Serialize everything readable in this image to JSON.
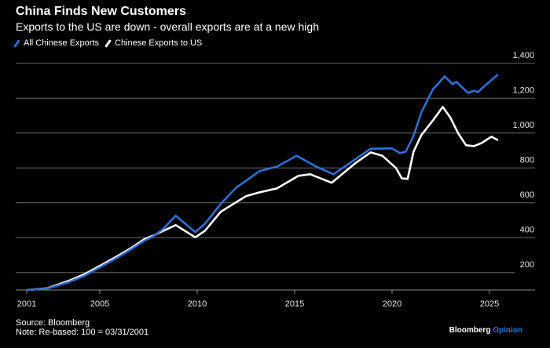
{
  "chart_data": {
    "type": "line",
    "title": "China Finds New Customers",
    "subtitle": "Exports to the US are down - overall exports are at a new high",
    "xlabel": "",
    "ylabel": "",
    "xlim": [
      2001,
      2026.5
    ],
    "ylim": [
      100,
      1400
    ],
    "x_ticks": [
      {
        "label": "2001",
        "value": 2001.25
      },
      {
        "label": "2005",
        "value": 2005
      },
      {
        "label": "2010",
        "value": 2010
      },
      {
        "label": "2015",
        "value": 2015
      },
      {
        "label": "2020",
        "value": 2020
      },
      {
        "label": "2025",
        "value": 2025
      }
    ],
    "y_ticks": [
      200,
      400,
      600,
      800,
      1000,
      1200,
      1400
    ],
    "y_tick_labels": [
      "200",
      "400",
      "600",
      "800",
      "1,000",
      "1,200",
      "1,400"
    ],
    "grid": true,
    "legend_position": "top-left",
    "series": [
      {
        "name": "All Chinese Exports",
        "color": "#2f6fd6",
        "points": [
          [
            2001.29,
            100
          ],
          [
            2002.3,
            108
          ],
          [
            2003.4,
            145
          ],
          [
            2004.2,
            181
          ],
          [
            2005.0,
            230
          ],
          [
            2005.8,
            279
          ],
          [
            2006.6,
            333
          ],
          [
            2007.3,
            383
          ],
          [
            2007.7,
            405
          ],
          [
            2008.2,
            445
          ],
          [
            2008.9,
            526
          ],
          [
            2009.9,
            432
          ],
          [
            2010.4,
            480
          ],
          [
            2011.2,
            593
          ],
          [
            2012.0,
            687
          ],
          [
            2013.2,
            782
          ],
          [
            2014.1,
            808
          ],
          [
            2015.1,
            870
          ],
          [
            2016.1,
            808
          ],
          [
            2017.0,
            764
          ],
          [
            2018.1,
            849
          ],
          [
            2018.9,
            910
          ],
          [
            2020.0,
            912
          ],
          [
            2020.4,
            885
          ],
          [
            2020.7,
            893
          ],
          [
            2021.1,
            983
          ],
          [
            2021.5,
            1118
          ],
          [
            2022.1,
            1252
          ],
          [
            2022.3,
            1275
          ],
          [
            2022.7,
            1325
          ],
          [
            2023.1,
            1280
          ],
          [
            2023.3,
            1294
          ],
          [
            2023.9,
            1230
          ],
          [
            2024.2,
            1243
          ],
          [
            2024.4,
            1234
          ],
          [
            2024.8,
            1275
          ],
          [
            2025.4,
            1333
          ]
        ]
      },
      {
        "name": "Chinese Exports to US",
        "color": "#ffffff",
        "points": [
          [
            2001.29,
            100
          ],
          [
            2002.3,
            110
          ],
          [
            2003.4,
            152
          ],
          [
            2004.2,
            190
          ],
          [
            2005.0,
            238
          ],
          [
            2005.8,
            288
          ],
          [
            2006.6,
            340
          ],
          [
            2007.3,
            392
          ],
          [
            2007.7,
            410
          ],
          [
            2008.2,
            436
          ],
          [
            2008.9,
            472
          ],
          [
            2009.9,
            402
          ],
          [
            2010.4,
            440
          ],
          [
            2011.2,
            548
          ],
          [
            2012.5,
            638
          ],
          [
            2013.2,
            660
          ],
          [
            2014.1,
            683
          ],
          [
            2015.2,
            755
          ],
          [
            2015.8,
            764
          ],
          [
            2016.9,
            715
          ],
          [
            2018.1,
            826
          ],
          [
            2018.9,
            889
          ],
          [
            2019.5,
            870
          ],
          [
            2020.2,
            800
          ],
          [
            2020.5,
            740
          ],
          [
            2020.8,
            737
          ],
          [
            2021.1,
            893
          ],
          [
            2021.5,
            988
          ],
          [
            2022.1,
            1073
          ],
          [
            2022.6,
            1150
          ],
          [
            2023.0,
            1087
          ],
          [
            2023.4,
            997
          ],
          [
            2023.8,
            930
          ],
          [
            2024.2,
            925
          ],
          [
            2024.6,
            943
          ],
          [
            2025.1,
            979
          ],
          [
            2025.4,
            961
          ]
        ]
      }
    ]
  },
  "footer": {
    "source": "Source: Bloomberg",
    "note": "Note: Re-based: 100 = 03/31/2001"
  },
  "brand": {
    "name": "Bloomberg",
    "section": "Opinion"
  }
}
